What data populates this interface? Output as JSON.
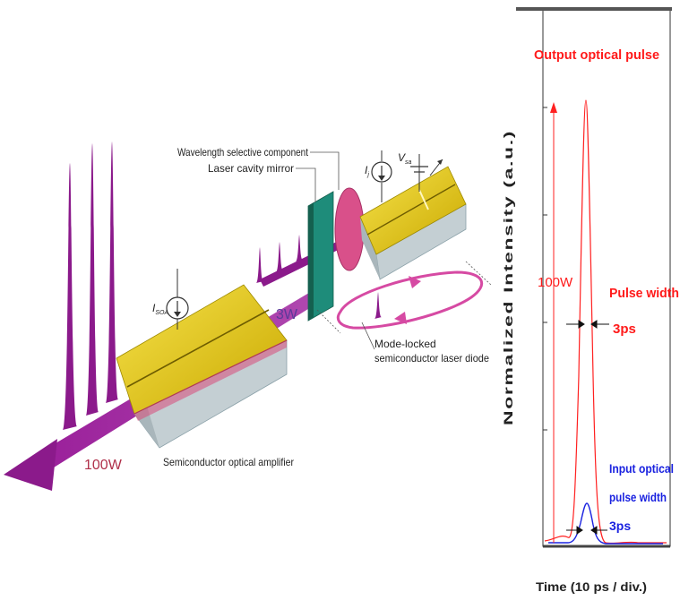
{
  "diagram": {
    "labels": {
      "wavelength_component": "Wavelength selective component",
      "cavity_mirror": "Laser cavity mirror",
      "ij": "I",
      "ij_sub": "j",
      "vsa": "V",
      "vsa_sub": "sa",
      "isoa": "I",
      "isoa_sub": "SOA",
      "power_3w": "3W",
      "power_100w": "100W",
      "mode_locked_1": "Mode-locked",
      "mode_locked_2": "semiconductor laser diode",
      "soa": "Semiconductor optical amplifier"
    },
    "colors": {
      "beam": "#8b1a8b",
      "chip_top": "#e8d000",
      "chip_side": "#c9d3d6",
      "mirror": "#1e8c7a",
      "lens": "#d9508a",
      "loop": "#d64aa3"
    }
  },
  "plot": {
    "title": "Output optical pulse",
    "ylabel": "Normalized Intensity (a.u.)",
    "xlabel": "Time (10 ps / div.)",
    "label_100w": "100W",
    "pulse_width_title": "Pulse width",
    "pulse_width_value": "3ps",
    "input_label_1": "Input optical",
    "input_label_2": "pulse width",
    "input_label_3": "3ps",
    "colors": {
      "output": "#ff2020",
      "input": "#1a22e0",
      "text_red": "#ff1a1a",
      "text_blue": "#1a22e0"
    }
  }
}
